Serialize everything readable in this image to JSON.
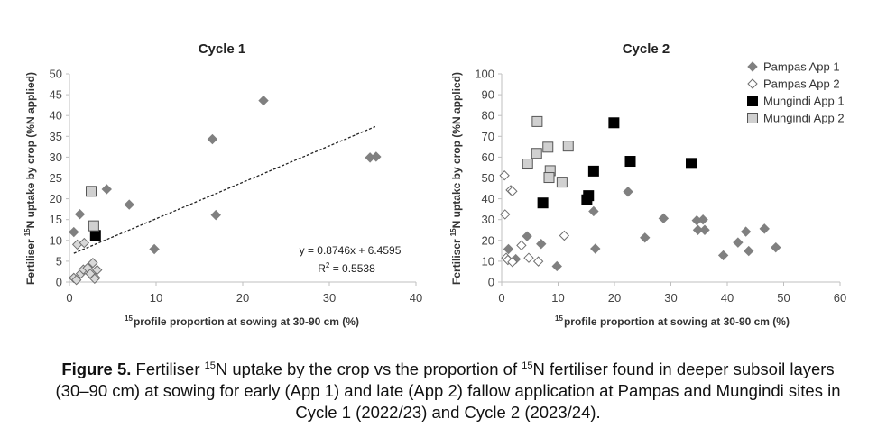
{
  "chart_data": [
    {
      "type": "scatter",
      "title": "Cycle 1",
      "xlabel": "profile proportion at sowing at 30-90 cm (%)",
      "xlabel_sup": "15",
      "ylabel_pre": "Fertiliser",
      "ylabel_sup": "15",
      "ylabel_post": "N uptake by crop (%N applied)",
      "xlim": [
        0,
        40
      ],
      "ylim": [
        0,
        50
      ],
      "xticks": [
        0,
        10,
        20,
        30,
        40
      ],
      "yticks": [
        0,
        5,
        10,
        15,
        20,
        25,
        30,
        35,
        40,
        45,
        50
      ],
      "trendline": {
        "slope": 0.8746,
        "intercept": 6.4595,
        "x_range": [
          0.5,
          35.3
        ],
        "equation": "y = 0.8746x + 6.4595",
        "r2_label": "R",
        "r2_sup": "2",
        "r2_value": " = 0.5538"
      },
      "series": [
        {
          "name": "Pampas App 1",
          "marker": "diamond",
          "fill": "#808080",
          "stroke": "#808080",
          "x": [
            0.5,
            1.2,
            4.3,
            6.9,
            9.8,
            16.5,
            16.9,
            22.4,
            34.7,
            35.4
          ],
          "y": [
            12,
            16.3,
            22.3,
            18.6,
            7.9,
            34.3,
            16.1,
            43.6,
            29.9,
            30.1
          ]
        },
        {
          "name": "Pampas App 2",
          "marker": "diamond",
          "fill": "#d9d9d9",
          "stroke": "#6f6f6f",
          "x": [
            0.9,
            1.7,
            0.5,
            0.8,
            1.3,
            1.6,
            2.1,
            2.4,
            2.7,
            3.0,
            3.2,
            2.9
          ],
          "y": [
            9.0,
            9.4,
            1.0,
            0.5,
            2.0,
            3.0,
            3.4,
            2.0,
            4.6,
            1.0,
            2.9,
            0.8
          ]
        },
        {
          "name": "Mungindi App 1",
          "marker": "square",
          "fill": "#000000",
          "stroke": "#000000",
          "x": [
            3.0
          ],
          "y": [
            11.2
          ]
        },
        {
          "name": "Mungindi App 2",
          "marker": "square",
          "fill": "#d0d0d0",
          "stroke": "#555555",
          "x": [
            2.5,
            2.8
          ],
          "y": [
            21.8,
            13.5
          ]
        }
      ]
    },
    {
      "type": "scatter",
      "title": "Cycle 2",
      "xlabel": "profile proportion at sowing at 30-90 cm (%)",
      "xlabel_sup": "15",
      "ylabel_pre": "Fertiliser",
      "ylabel_sup": "15",
      "ylabel_post": "N uptake by crop (%N applied)",
      "xlim": [
        0,
        60
      ],
      "ylim": [
        0,
        100
      ],
      "xticks": [
        0,
        10,
        20,
        30,
        40,
        50,
        60
      ],
      "yticks": [
        0,
        10,
        20,
        30,
        40,
        50,
        60,
        70,
        80,
        90,
        100
      ],
      "legend": [
        "Pampas App 1",
        "Pampas App 2",
        "Mungindi App 1",
        "Mungindi App 2"
      ],
      "series": [
        {
          "name": "Pampas App 1",
          "marker": "diamond",
          "fill": "#808080",
          "stroke": "#808080",
          "x": [
            1.2,
            2.5,
            4.5,
            7.0,
            9.8,
            16.3,
            16.6,
            22.4,
            25.4,
            28.7,
            34.6,
            34.8,
            35.7,
            36.0,
            39.3,
            41.9,
            43.3,
            43.8,
            46.6,
            48.6
          ],
          "y": [
            15.8,
            11.0,
            22.0,
            18.3,
            7.6,
            34.0,
            16.0,
            43.4,
            21.3,
            30.6,
            29.6,
            25.0,
            30.0,
            25.0,
            12.8,
            19.0,
            24.2,
            14.9,
            25.6,
            16.6
          ]
        },
        {
          "name": "Pampas App 2",
          "marker": "diamond",
          "fill": "#ffffff",
          "stroke": "#6f6f6f",
          "x": [
            0.5,
            1.6,
            1.9,
            0.6,
            0.8,
            1.1,
            1.9,
            3.5,
            4.8,
            6.5,
            11.1
          ],
          "y": [
            51.2,
            44.2,
            43.6,
            32.5,
            11.6,
            10.6,
            9.6,
            17.6,
            11.6,
            9.9,
            22.3
          ]
        },
        {
          "name": "Mungindi App 1",
          "marker": "square",
          "fill": "#000000",
          "stroke": "#000000",
          "x": [
            7.3,
            15.1,
            15.4,
            16.3,
            19.9,
            22.8,
            33.6
          ],
          "y": [
            38.0,
            39.5,
            41.5,
            53.3,
            76.5,
            58.0,
            57.0
          ]
        },
        {
          "name": "Mungindi App 2",
          "marker": "square",
          "fill": "#d0d0d0",
          "stroke": "#555555",
          "x": [
            4.6,
            6.2,
            6.3,
            8.2,
            8.6,
            8.4,
            10.7,
            11.8
          ],
          "y": [
            56.7,
            61.8,
            77.1,
            64.8,
            53.5,
            50.2,
            48.0,
            65.3
          ]
        }
      ]
    }
  ],
  "caption": {
    "figure_label": "Figure 5.",
    "line1_a": " Fertiliser ",
    "sup1": "15",
    "line1_b": "N uptake by the crop vs the proportion of ",
    "sup2": "15",
    "line1_c": "N fertiliser found in deeper subsoil layers",
    "line2": "(30–90 cm) at sowing for early (App 1) and late (App 2) fallow application at Pampas and Mungindi sites in",
    "line3": "Cycle 1 (2022/23) and Cycle 2 (2023/24)."
  }
}
